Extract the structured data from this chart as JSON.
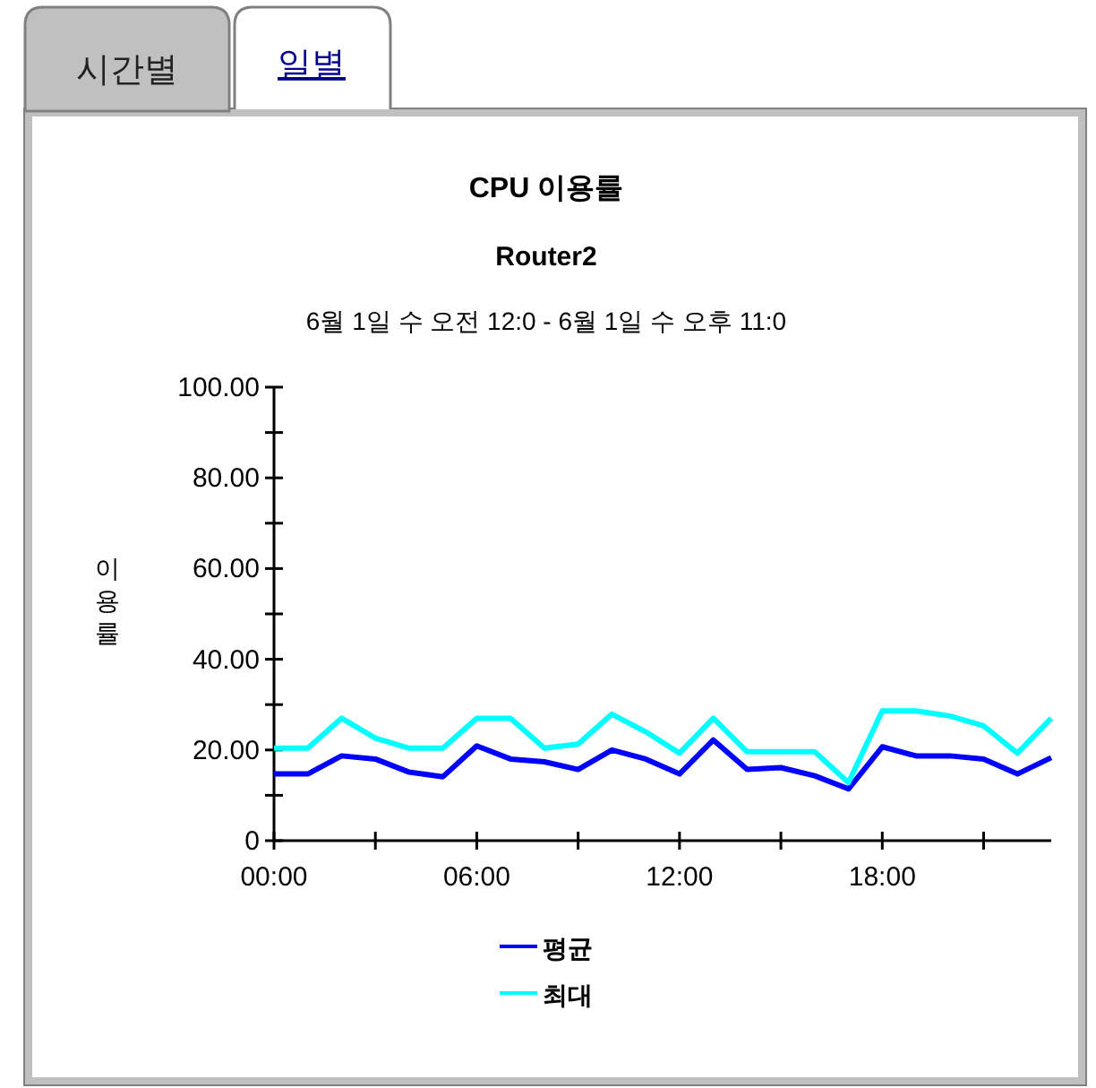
{
  "chart_data": {
    "type": "line",
    "title": "CPU 이용률",
    "subtitle": "Router2",
    "ylabel": "이용률",
    "annotations": [
      "6월 1일 수 오전 12:0 - 6월 1일 수 오후 11:0",
      "시간별",
      "일별"
    ],
    "x": [
      0,
      1,
      2,
      3,
      4,
      5,
      6,
      7,
      8,
      9,
      10,
      11,
      12,
      13,
      14,
      15,
      16,
      17,
      18,
      19,
      20,
      21,
      22,
      23
    ],
    "series": [
      {
        "name": "평균",
        "color": "#0000ff",
        "values": [
          14.7,
          14.7,
          18.7,
          18,
          15.1,
          14.1,
          20.9,
          18,
          17.4,
          15.7,
          20,
          18,
          14.7,
          22.2,
          15.7,
          16.1,
          14.3,
          11.4,
          20.7,
          18.7,
          18.7,
          18,
          14.7,
          18.3
        ]
      },
      {
        "name": "최대",
        "color": "#00ffff",
        "values": [
          20.4,
          20.4,
          27,
          22.6,
          20.4,
          20.4,
          27,
          27,
          20.4,
          21.3,
          27.9,
          24,
          19.3,
          27,
          19.6,
          19.6,
          19.6,
          12.8,
          28.6,
          28.6,
          27.5,
          25.3,
          19.3,
          27
        ]
      }
    ],
    "xlim": [
      0,
      23
    ],
    "ylim": [
      0,
      100
    ],
    "xticks": [
      {
        "value": 0,
        "label": "00:00"
      },
      {
        "value": 3,
        "label": null
      },
      {
        "value": 6,
        "label": "06:00"
      },
      {
        "value": 9,
        "label": null
      },
      {
        "value": 12,
        "label": "12:00"
      },
      {
        "value": 15,
        "label": null
      },
      {
        "value": 18,
        "label": "18:00"
      },
      {
        "value": 21,
        "label": null
      }
    ],
    "yticks": [
      0,
      {
        "value": 10,
        "label": null
      },
      {
        "value": 20,
        "label": "20.00"
      },
      {
        "value": 30,
        "label": null
      },
      {
        "value": 40,
        "label": "40.00"
      },
      {
        "value": 50,
        "label": null
      },
      {
        "value": 60,
        "label": "60.00"
      },
      {
        "value": 70,
        "label": null
      },
      {
        "value": 80,
        "label": "80.00"
      },
      {
        "value": 90,
        "label": null
      },
      {
        "value": 100,
        "label": "100.00"
      }
    ],
    "grid": false,
    "legend": "bottom",
    "marker": "none",
    "line_style": "solid"
  }
}
